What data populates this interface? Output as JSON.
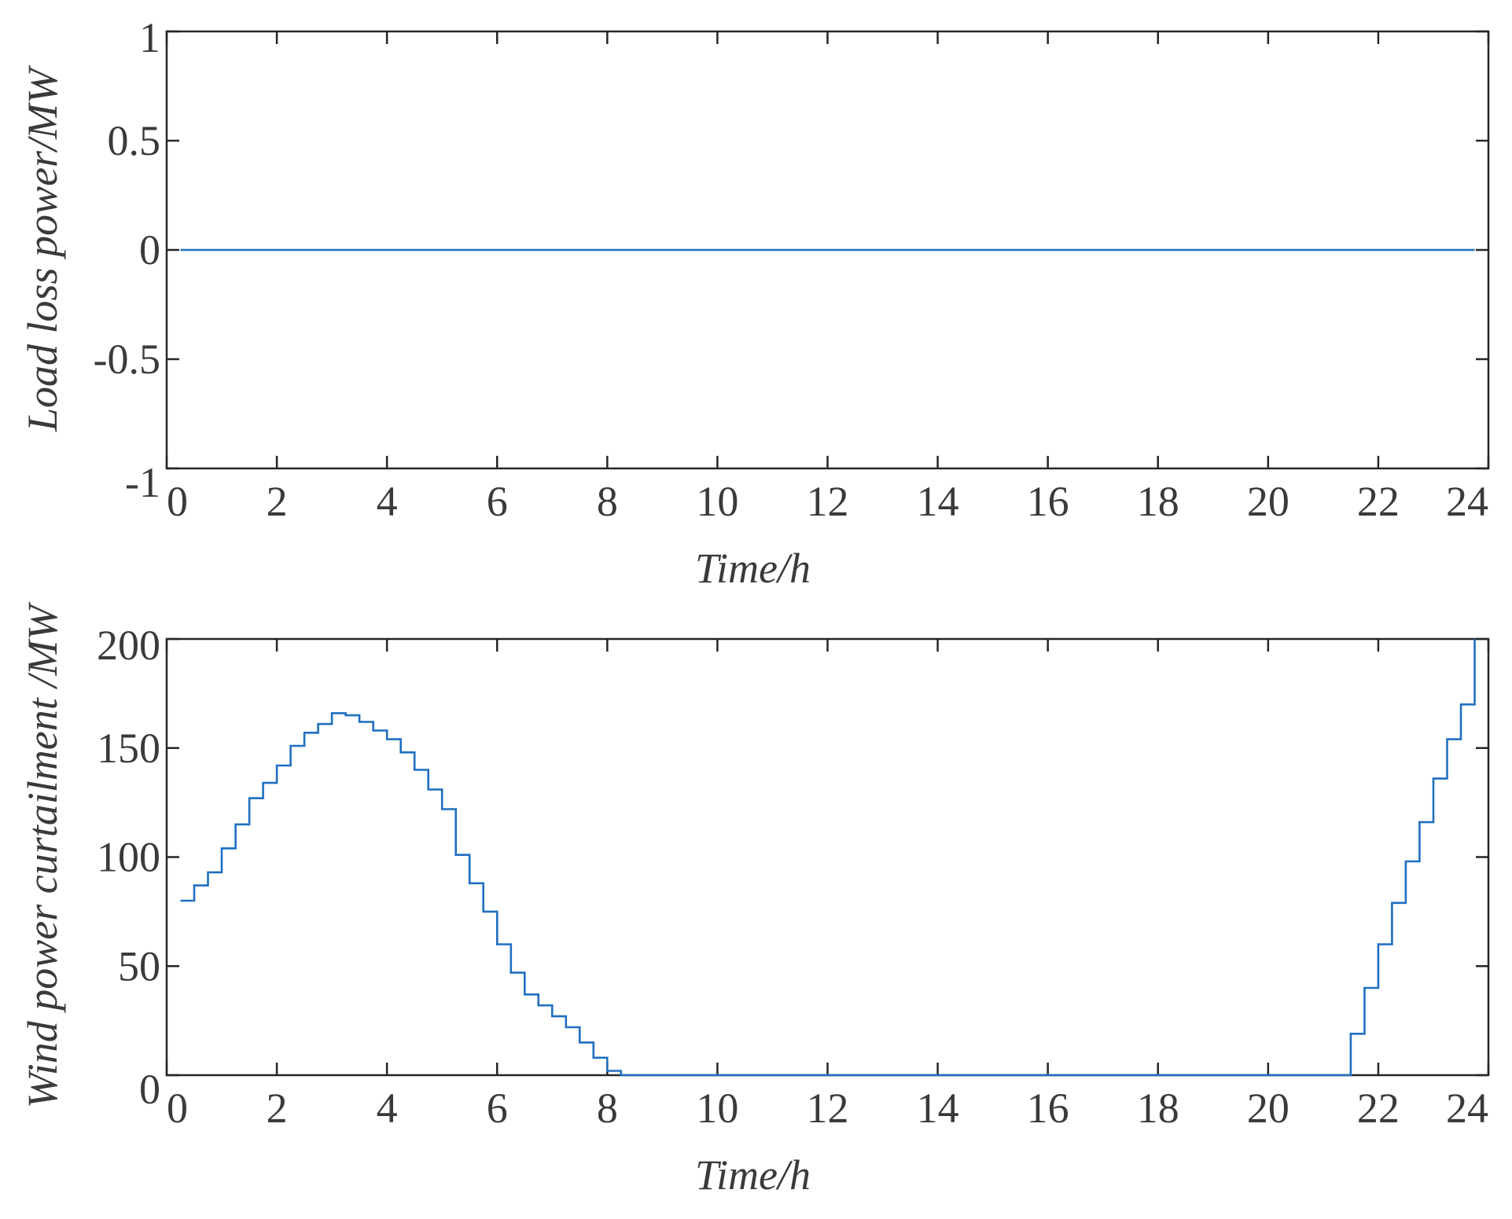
{
  "chart_data": [
    {
      "type": "line",
      "title": "",
      "xlabel": "Time/h",
      "ylabel": "Load loss power/MW",
      "xlim": [
        0,
        24
      ],
      "ylim": [
        -1,
        1
      ],
      "xticks": [
        0,
        2,
        4,
        6,
        8,
        10,
        12,
        14,
        16,
        18,
        20,
        22,
        24
      ],
      "yticks": [
        -1,
        -0.5,
        0,
        0.5,
        1
      ],
      "ytick_labels": [
        "-1",
        "-0.5",
        "0",
        "0.5",
        "1"
      ],
      "grid": false,
      "line_color": "#1f6fc0",
      "series": [
        {
          "x": [
            0.25,
            23.75
          ],
          "y": [
            0,
            0
          ]
        }
      ]
    },
    {
      "type": "line",
      "step": true,
      "title": "",
      "xlabel": "Time/h",
      "ylabel": "Wind power curtailment /MW",
      "xlim": [
        0,
        24
      ],
      "ylim": [
        0,
        200
      ],
      "xticks": [
        0,
        2,
        4,
        6,
        8,
        10,
        12,
        14,
        16,
        18,
        20,
        22,
        24
      ],
      "yticks": [
        0,
        50,
        100,
        150,
        200
      ],
      "ytick_labels": [
        "0",
        "50",
        "100",
        "150",
        "200"
      ],
      "grid": false,
      "line_color": "#1f6fc0",
      "series": [
        {
          "x_start": 0.25,
          "x_end": 23.75,
          "step": 0.25,
          "values": [
            80,
            87,
            93,
            104,
            115,
            127,
            134,
            142,
            151,
            157,
            161,
            166,
            165,
            162,
            158,
            154,
            148,
            140,
            131,
            122,
            101,
            88,
            75,
            60,
            47,
            37,
            32,
            27,
            22,
            15,
            8,
            2,
            0,
            0,
            0,
            0,
            0,
            0,
            0,
            0,
            0,
            0,
            0,
            0,
            0,
            0,
            0,
            0,
            0,
            0,
            0,
            0,
            0,
            0,
            0,
            0,
            0,
            0,
            0,
            0,
            0,
            0,
            0,
            0,
            0,
            0,
            0,
            0,
            0,
            0,
            0,
            0,
            0,
            0,
            0,
            0,
            0,
            0,
            0,
            0,
            0,
            0,
            0,
            0,
            0,
            19,
            40,
            60,
            79,
            98,
            116,
            136,
            154,
            170,
            186
          ]
        }
      ]
    }
  ]
}
